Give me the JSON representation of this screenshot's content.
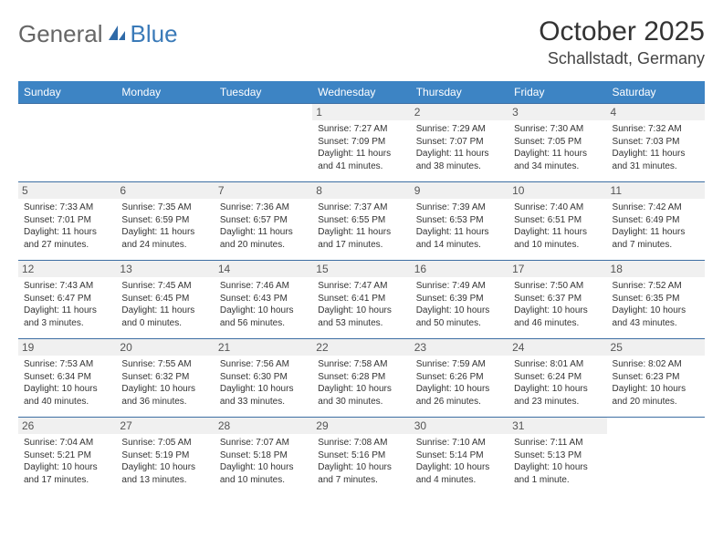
{
  "logo": {
    "text1": "General",
    "text2": "Blue"
  },
  "title": "October 2025",
  "location": "Schallstadt, Germany",
  "colors": {
    "header_bg": "#3d84c4",
    "rule": "#3d6fa3",
    "daynum_bg": "#f0f0f0",
    "logo_blue": "#3a7ab8",
    "text": "#333333",
    "background": "#ffffff"
  },
  "weekdays": [
    "Sunday",
    "Monday",
    "Tuesday",
    "Wednesday",
    "Thursday",
    "Friday",
    "Saturday"
  ],
  "weeks": [
    [
      null,
      null,
      null,
      {
        "d": "1",
        "sr": "7:27 AM",
        "ss": "7:09 PM",
        "dl": "11 hours and 41 minutes."
      },
      {
        "d": "2",
        "sr": "7:29 AM",
        "ss": "7:07 PM",
        "dl": "11 hours and 38 minutes."
      },
      {
        "d": "3",
        "sr": "7:30 AM",
        "ss": "7:05 PM",
        "dl": "11 hours and 34 minutes."
      },
      {
        "d": "4",
        "sr": "7:32 AM",
        "ss": "7:03 PM",
        "dl": "11 hours and 31 minutes."
      }
    ],
    [
      {
        "d": "5",
        "sr": "7:33 AM",
        "ss": "7:01 PM",
        "dl": "11 hours and 27 minutes."
      },
      {
        "d": "6",
        "sr": "7:35 AM",
        "ss": "6:59 PM",
        "dl": "11 hours and 24 minutes."
      },
      {
        "d": "7",
        "sr": "7:36 AM",
        "ss": "6:57 PM",
        "dl": "11 hours and 20 minutes."
      },
      {
        "d": "8",
        "sr": "7:37 AM",
        "ss": "6:55 PM",
        "dl": "11 hours and 17 minutes."
      },
      {
        "d": "9",
        "sr": "7:39 AM",
        "ss": "6:53 PM",
        "dl": "11 hours and 14 minutes."
      },
      {
        "d": "10",
        "sr": "7:40 AM",
        "ss": "6:51 PM",
        "dl": "11 hours and 10 minutes."
      },
      {
        "d": "11",
        "sr": "7:42 AM",
        "ss": "6:49 PM",
        "dl": "11 hours and 7 minutes."
      }
    ],
    [
      {
        "d": "12",
        "sr": "7:43 AM",
        "ss": "6:47 PM",
        "dl": "11 hours and 3 minutes."
      },
      {
        "d": "13",
        "sr": "7:45 AM",
        "ss": "6:45 PM",
        "dl": "11 hours and 0 minutes."
      },
      {
        "d": "14",
        "sr": "7:46 AM",
        "ss": "6:43 PM",
        "dl": "10 hours and 56 minutes."
      },
      {
        "d": "15",
        "sr": "7:47 AM",
        "ss": "6:41 PM",
        "dl": "10 hours and 53 minutes."
      },
      {
        "d": "16",
        "sr": "7:49 AM",
        "ss": "6:39 PM",
        "dl": "10 hours and 50 minutes."
      },
      {
        "d": "17",
        "sr": "7:50 AM",
        "ss": "6:37 PM",
        "dl": "10 hours and 46 minutes."
      },
      {
        "d": "18",
        "sr": "7:52 AM",
        "ss": "6:35 PM",
        "dl": "10 hours and 43 minutes."
      }
    ],
    [
      {
        "d": "19",
        "sr": "7:53 AM",
        "ss": "6:34 PM",
        "dl": "10 hours and 40 minutes."
      },
      {
        "d": "20",
        "sr": "7:55 AM",
        "ss": "6:32 PM",
        "dl": "10 hours and 36 minutes."
      },
      {
        "d": "21",
        "sr": "7:56 AM",
        "ss": "6:30 PM",
        "dl": "10 hours and 33 minutes."
      },
      {
        "d": "22",
        "sr": "7:58 AM",
        "ss": "6:28 PM",
        "dl": "10 hours and 30 minutes."
      },
      {
        "d": "23",
        "sr": "7:59 AM",
        "ss": "6:26 PM",
        "dl": "10 hours and 26 minutes."
      },
      {
        "d": "24",
        "sr": "8:01 AM",
        "ss": "6:24 PM",
        "dl": "10 hours and 23 minutes."
      },
      {
        "d": "25",
        "sr": "8:02 AM",
        "ss": "6:23 PM",
        "dl": "10 hours and 20 minutes."
      }
    ],
    [
      {
        "d": "26",
        "sr": "7:04 AM",
        "ss": "5:21 PM",
        "dl": "10 hours and 17 minutes."
      },
      {
        "d": "27",
        "sr": "7:05 AM",
        "ss": "5:19 PM",
        "dl": "10 hours and 13 minutes."
      },
      {
        "d": "28",
        "sr": "7:07 AM",
        "ss": "5:18 PM",
        "dl": "10 hours and 10 minutes."
      },
      {
        "d": "29",
        "sr": "7:08 AM",
        "ss": "5:16 PM",
        "dl": "10 hours and 7 minutes."
      },
      {
        "d": "30",
        "sr": "7:10 AM",
        "ss": "5:14 PM",
        "dl": "10 hours and 4 minutes."
      },
      {
        "d": "31",
        "sr": "7:11 AM",
        "ss": "5:13 PM",
        "dl": "10 hours and 1 minute."
      },
      null
    ]
  ],
  "labels": {
    "sunrise": "Sunrise: ",
    "sunset": "Sunset: ",
    "daylight": "Daylight: "
  }
}
